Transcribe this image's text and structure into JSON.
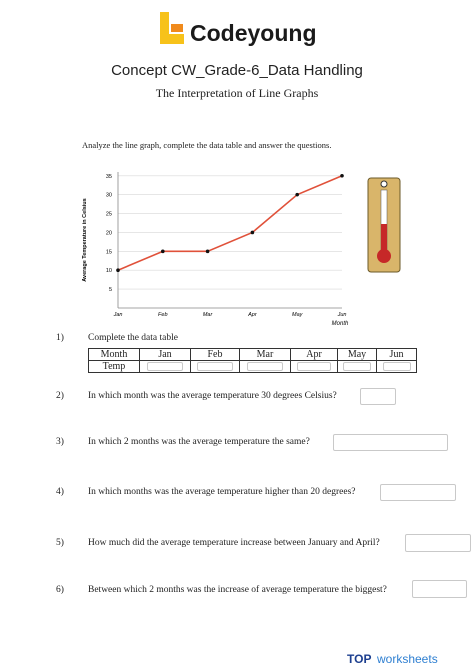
{
  "header": {
    "logo": "Codeyoung",
    "title": "Concept CW_Grade-6_Data Handling",
    "subtitle": "The Interpretation of Line Graphs"
  },
  "instruction": "Analyze the line graph, complete the data table and answer the questions.",
  "chart_data": {
    "type": "line",
    "y_label": "Average Temperature in Celsius",
    "x_label": "Month",
    "categories": [
      "Jan",
      "Feb",
      "Mar",
      "Apr",
      "May",
      "Jun"
    ],
    "values": [
      10,
      15,
      15,
      20,
      30,
      35
    ],
    "color": "#e0513a",
    "ylim": [
      0,
      36
    ],
    "yticks": [
      5,
      10,
      15,
      20,
      25,
      30,
      35
    ],
    "grid": true
  },
  "table": {
    "header": [
      "Month",
      "Jan",
      "Feb",
      "Mar",
      "Apr",
      "May",
      "Jun"
    ],
    "row_label": "Temp"
  },
  "questions": [
    {
      "number": "1)",
      "text": "Complete the data table"
    },
    {
      "number": "2)",
      "text": "In which month was the average temperature 30 degrees Celsius?"
    },
    {
      "number": "3)",
      "text": "In which 2 months was the average temperature the same?"
    },
    {
      "number": "4)",
      "text": "In which months was the average temperature higher than 20 degrees?"
    },
    {
      "number": "5)",
      "text": "How much did the average temperature increase between January and April?"
    },
    {
      "number": "6)",
      "text": "Between which 2 months was the increase of average temperature the biggest?"
    }
  ],
  "footer": {
    "brand_top": "TOP",
    "brand_rest": "worksheets"
  }
}
